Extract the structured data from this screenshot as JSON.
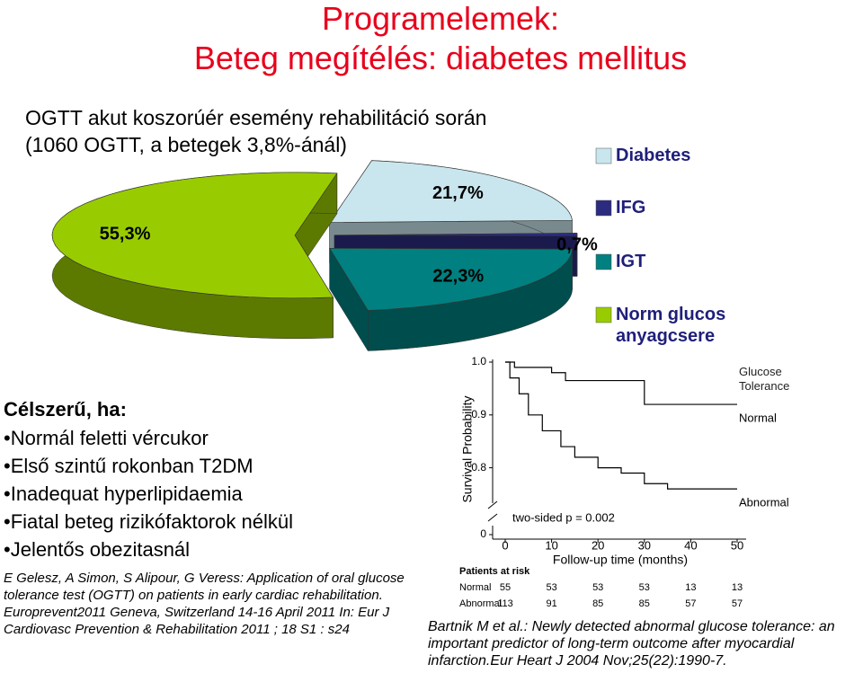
{
  "title": [
    "Programelemek:",
    "Beteg megítélés: diabetes mellitus"
  ],
  "intro": [
    "OGTT akut koszorúér esemény rehabilitáció során",
    "(1060 OGTT,  a betegek 3,8%-ánál)"
  ],
  "criteria": {
    "heading": "Célszerű, ha:",
    "items": [
      "•Normál feletti vércukor",
      "•Első szintű rokonban T2DM",
      "•Inadequat hyperlipidaemia",
      "•Fiatal beteg rizikófaktorok nélkül",
      "•Jelentős obezitasnál"
    ]
  },
  "reference": "E Gelesz, A Simon, S Alipour, G Veress: Application of oral glucose tolerance test (OGTT) on patients in early cardiac rehabilitation. Europrevent2011 Geneva, Switzerland 14-16 April 2011 In: Eur J Cardiovasc Prevention & Rehabilitation 2011 ; 18 S1 : s24",
  "citation": "Bartnik M et al.: Newly detected abnormal glucose tolerance: an important predictor of long-term outcome after myocardial infarction.Eur Heart J 2004 Nov;25(22):1990-7.",
  "chart_data": [
    {
      "type": "pie",
      "categories": [
        "Diabetes",
        "IFG",
        "IGT",
        "Norm glucos anyagcsere"
      ],
      "values": [
        21.7,
        0.7,
        22.3,
        55.3
      ],
      "value_labels": [
        "21,7%",
        "0,7%",
        "22,3%",
        "55,3%"
      ],
      "colors": [
        "#c9e6ee",
        "#2b2b80",
        "#008080",
        "#99cc00"
      ],
      "legend": "right"
    },
    {
      "type": "line",
      "step": true,
      "xlabel": "Follow-up time (months)",
      "ylabel": "Survival Probability",
      "xlim": [
        0,
        50
      ],
      "xticks": [
        0,
        10,
        20,
        30,
        40,
        50
      ],
      "ylim": [
        0,
        1
      ],
      "ybreak": [
        0,
        0.75
      ],
      "yticks": [
        0,
        0.8,
        0.9,
        {
          "value": 1,
          "label": "1.0"
        }
      ],
      "annotation": "two-sided p = 0.002",
      "legend_title": "Glucose Tolerance",
      "series": [
        {
          "name": "Normal",
          "color": "#000000",
          "x": [
            0,
            2,
            10,
            13,
            30,
            50
          ],
          "values": [
            1,
            0.99,
            0.98,
            0.965,
            0.92,
            0.92
          ]
        },
        {
          "name": "Abnormal",
          "color": "#000000",
          "x": [
            0,
            1,
            3,
            5,
            8,
            12,
            15,
            20,
            25,
            30,
            35,
            50
          ],
          "values": [
            1,
            0.97,
            0.94,
            0.9,
            0.87,
            0.84,
            0.82,
            0.8,
            0.79,
            0.77,
            0.76,
            0.76
          ]
        }
      ],
      "risk_table": {
        "title": "Patients at risk",
        "rows": [
          {
            "name": "Normal",
            "values": [
              55,
              53,
              53,
              53,
              13,
              13
            ]
          },
          {
            "name": "Abnormal",
            "values": [
              113,
              91,
              85,
              85,
              57,
              57
            ]
          }
        ]
      }
    }
  ]
}
